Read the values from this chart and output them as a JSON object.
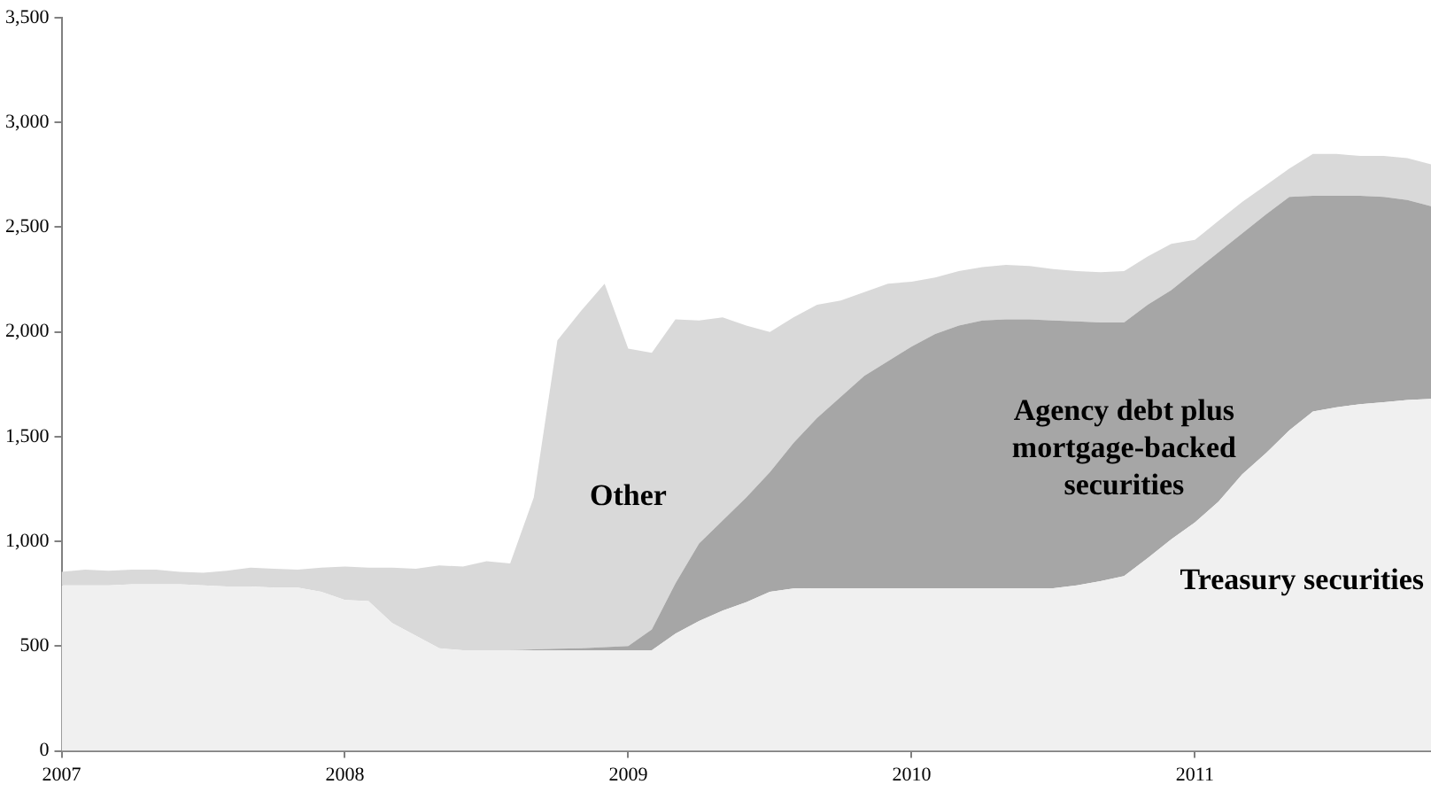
{
  "chart_data": {
    "type": "area",
    "stacked": true,
    "x": [
      "2007-01",
      "2007-02",
      "2007-03",
      "2007-04",
      "2007-05",
      "2007-06",
      "2007-07",
      "2007-08",
      "2007-09",
      "2007-10",
      "2007-11",
      "2007-12",
      "2008-01",
      "2008-02",
      "2008-03",
      "2008-04",
      "2008-05",
      "2008-06",
      "2008-07",
      "2008-08",
      "2008-09",
      "2008-10",
      "2008-11",
      "2008-12",
      "2009-01",
      "2009-02",
      "2009-03",
      "2009-04",
      "2009-05",
      "2009-06",
      "2009-07",
      "2009-08",
      "2009-09",
      "2009-10",
      "2009-11",
      "2009-12",
      "2010-01",
      "2010-02",
      "2010-03",
      "2010-04",
      "2010-05",
      "2010-06",
      "2010-07",
      "2010-08",
      "2010-09",
      "2010-10",
      "2010-11",
      "2010-12",
      "2011-01",
      "2011-02",
      "2011-03",
      "2011-04",
      "2011-05",
      "2011-06",
      "2011-07",
      "2011-08",
      "2011-09",
      "2011-10",
      "2011-11"
    ],
    "series": [
      {
        "name": "Treasury securities",
        "color": "#f0f0f0",
        "values": [
          790,
          790,
          790,
          795,
          795,
          795,
          790,
          785,
          785,
          780,
          780,
          760,
          720,
          715,
          610,
          550,
          490,
          480,
          480,
          480,
          480,
          480,
          480,
          480,
          480,
          480,
          560,
          620,
          670,
          710,
          760,
          775,
          776,
          776,
          776,
          776,
          776,
          776,
          776,
          776,
          776,
          776,
          776,
          790,
          810,
          835,
          920,
          1010,
          1090,
          1190,
          1320,
          1420,
          1530,
          1620,
          1640,
          1655,
          1665,
          1675,
          1680
        ]
      },
      {
        "name": "Agency debt plus mortgage-backed securities",
        "color": "#a6a6a6",
        "values": [
          0,
          0,
          0,
          0,
          0,
          0,
          0,
          0,
          0,
          0,
          0,
          0,
          0,
          0,
          0,
          0,
          0,
          0,
          0,
          0,
          5,
          8,
          10,
          15,
          20,
          100,
          240,
          370,
          430,
          500,
          570,
          695,
          814,
          914,
          1014,
          1084,
          1154,
          1214,
          1254,
          1279,
          1284,
          1284,
          1279,
          1260,
          1235,
          1210,
          1210,
          1190,
          1200,
          1190,
          1150,
          1140,
          1115,
          1030,
          1010,
          995,
          980,
          955,
          920
        ]
      },
      {
        "name": "Other",
        "color": "#d9d9d9",
        "values": [
          65,
          75,
          70,
          70,
          70,
          60,
          60,
          75,
          90,
          90,
          85,
          115,
          160,
          160,
          265,
          320,
          395,
          400,
          425,
          415,
          725,
          1472,
          1610,
          1735,
          1420,
          1320,
          1260,
          1065,
          970,
          820,
          670,
          600,
          540,
          460,
          400,
          370,
          310,
          270,
          260,
          255,
          260,
          255,
          245,
          240,
          240,
          245,
          230,
          220,
          150,
          150,
          150,
          140,
          135,
          200,
          200,
          190,
          195,
          200,
          200
        ]
      }
    ],
    "xlim": [
      "2007-01",
      "2011-11"
    ],
    "xticks": [
      "2007",
      "2008",
      "2009",
      "2010",
      "2011"
    ],
    "ylim": [
      0,
      3500
    ],
    "yticks": [
      0,
      500,
      {
        "value": 1000,
        "label": "1,000"
      },
      {
        "value": 1500,
        "label": "1,500"
      },
      {
        "value": 2000,
        "label": "2,000"
      },
      {
        "value": 2500,
        "label": "2,500"
      },
      {
        "value": 3000,
        "label": "3,000"
      },
      {
        "value": 3500,
        "label": "3,500"
      }
    ],
    "grid": false,
    "legend": false
  }
}
